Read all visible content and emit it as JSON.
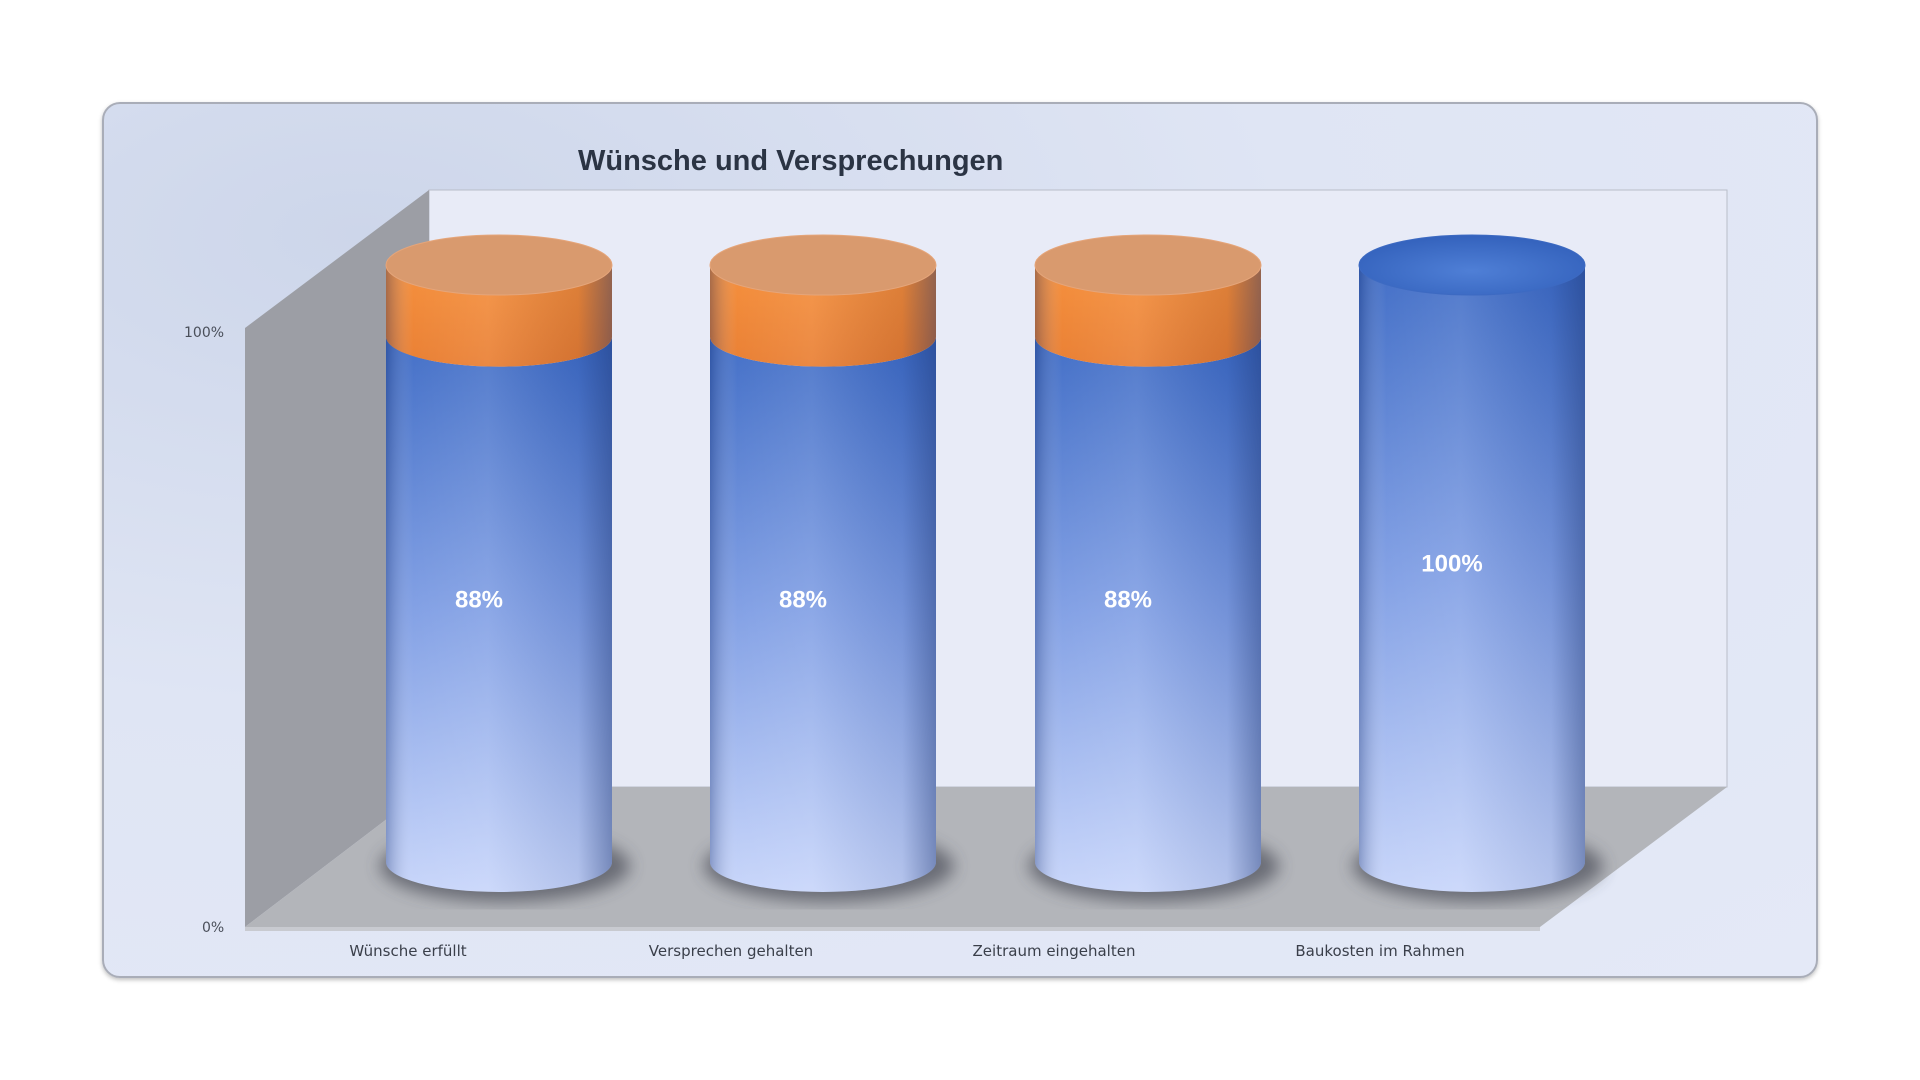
{
  "chart_data": {
    "type": "bar",
    "subtype": "3d-stacked-cylinder-percent",
    "title": "Wünsche und Versprechungen",
    "categories": [
      "Wünsche erfüllt",
      "Versprechen gehalten",
      "Zeitraum eingehalten",
      "Baukosten im Rahmen"
    ],
    "series": [
      {
        "values": [
          88,
          88,
          88,
          100
        ],
        "color": "#4472c4",
        "data_labels": [
          "88%",
          "88%",
          "88%",
          "100%"
        ]
      },
      {
        "values": [
          12,
          12,
          12,
          0
        ],
        "color": "#ed7d31"
      }
    ],
    "ylim": [
      0,
      100
    ],
    "y_ticks": [
      "0%",
      "100%"
    ],
    "grid": false,
    "legend": "none"
  }
}
